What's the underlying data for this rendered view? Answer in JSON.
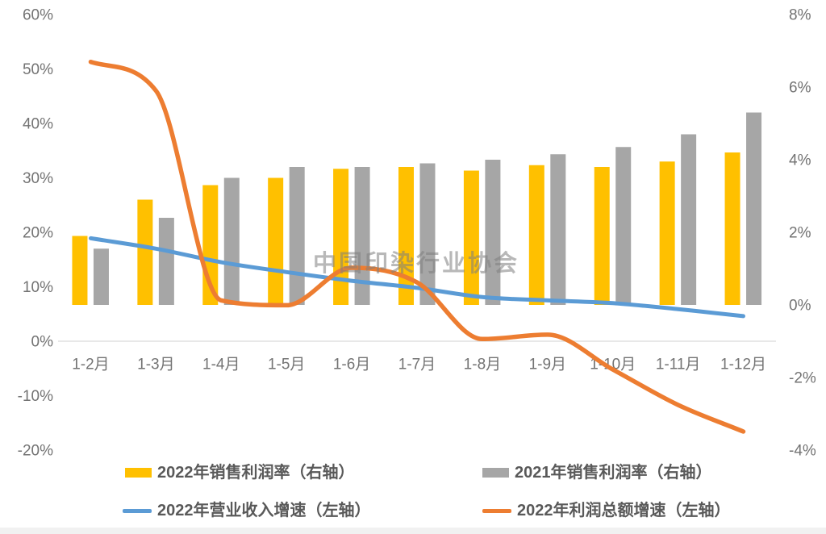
{
  "chart_data": {
    "type": "combo",
    "title": "",
    "categories": [
      "1-2月",
      "1-3月",
      "1-4月",
      "1-5月",
      "1-6月",
      "1-7月",
      "1-8月",
      "1-9月",
      "1-10月",
      "1-11月",
      "1-12月"
    ],
    "series": [
      {
        "name": "2022年销售利润率（右轴）",
        "type": "bar",
        "axis": "right",
        "color": "#FFC000",
        "values": [
          1.9,
          2.9,
          3.3,
          3.5,
          3.75,
          3.8,
          3.7,
          3.85,
          3.8,
          3.95,
          4.2
        ]
      },
      {
        "name": "2021年销售利润率（右轴）",
        "type": "bar",
        "axis": "right",
        "color": "#A6A6A6",
        "values": [
          1.55,
          2.4,
          3.5,
          3.8,
          3.8,
          3.9,
          4.0,
          4.15,
          4.35,
          4.7,
          5.3
        ]
      },
      {
        "name": "2022年营业收入增速（左轴）",
        "type": "line",
        "axis": "left",
        "color": "#5B9BD5",
        "values": [
          18.9,
          17.0,
          14.5,
          12.7,
          11.1,
          9.8,
          8.1,
          7.5,
          7.0,
          5.9,
          4.6
        ]
      },
      {
        "name": "2022年利润总额增速（左轴）",
        "type": "line",
        "axis": "left",
        "color": "#ED7D31",
        "values": [
          51.3,
          46.0,
          7.5,
          6.6,
          13.5,
          10.8,
          0.4,
          1.2,
          -5.2,
          -11.7,
          -16.6
        ]
      }
    ],
    "left_axis": {
      "min": -20,
      "max": 60,
      "step": 10,
      "ticks": [
        "60%",
        "50%",
        "40%",
        "30%",
        "20%",
        "10%",
        "0%",
        "-10%",
        "-20%"
      ]
    },
    "right_axis": {
      "min": -4,
      "max": 8,
      "step": 2,
      "ticks": [
        "8%",
        "6%",
        "4%",
        "2%",
        "0%",
        "-2%",
        "-4%"
      ]
    },
    "grid": false,
    "legend_position": "bottom",
    "watermark": "中国印染行业协会"
  },
  "palette": {
    "background": "#FFFFFF",
    "axis_label": "#737373",
    "legend_label": "#595959",
    "axis_line": "#D9D9D9",
    "watermark": "#7F7F7F",
    "bottom_strip": "#F1F1F1"
  }
}
